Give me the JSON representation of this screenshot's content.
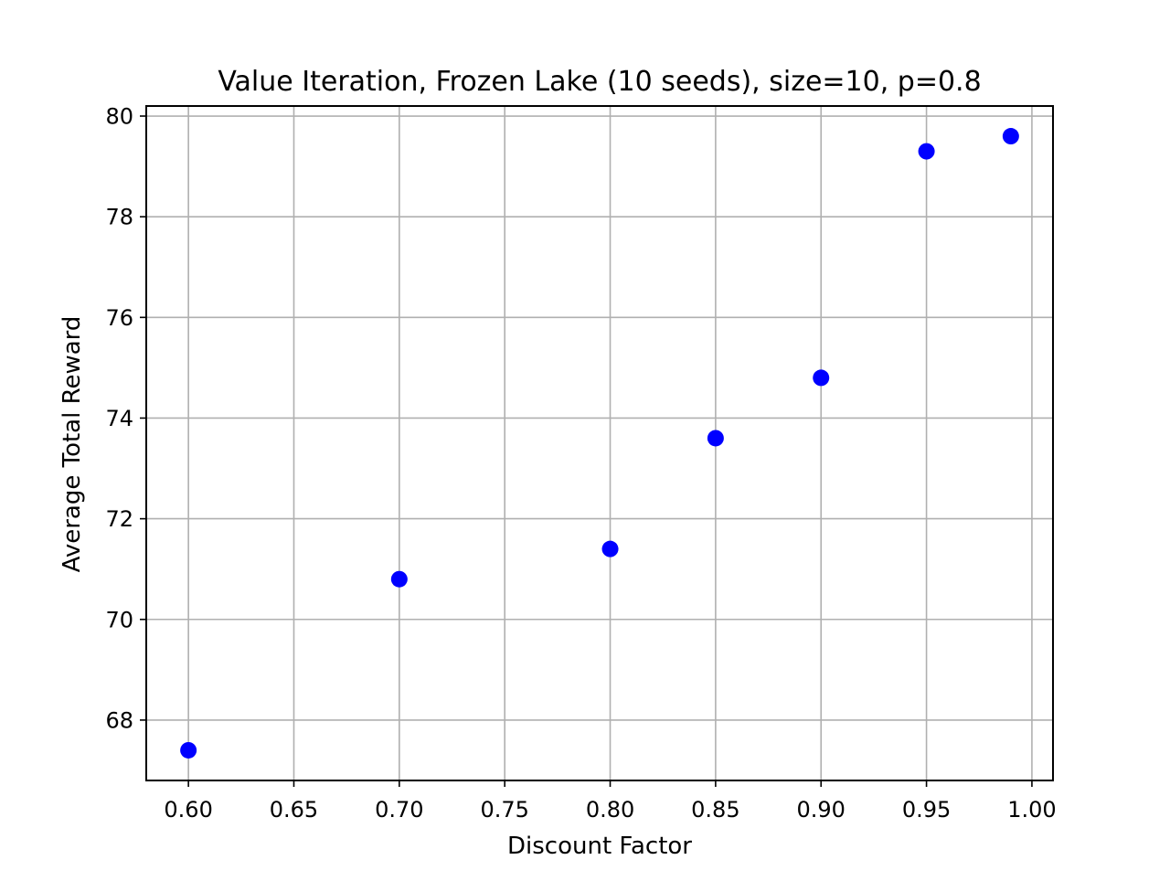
{
  "chart_data": {
    "type": "scatter",
    "title": "Value Iteration, Frozen Lake (10 seeds), size=10, p=0.8",
    "xlabel": "Discount Factor",
    "ylabel": "Average Total Reward",
    "xlim": [
      0.58,
      1.01
    ],
    "ylim": [
      66.8,
      80.2
    ],
    "xticks": [
      0.6,
      0.65,
      0.7,
      0.75,
      0.8,
      0.85,
      0.9,
      0.95,
      1.0
    ],
    "xtick_labels": [
      "0.60",
      "0.65",
      "0.70",
      "0.75",
      "0.80",
      "0.85",
      "0.90",
      "0.95",
      "1.00"
    ],
    "yticks": [
      68,
      70,
      72,
      74,
      76,
      78,
      80
    ],
    "ytick_labels": [
      "68",
      "70",
      "72",
      "74",
      "76",
      "78",
      "80"
    ],
    "grid": true,
    "legend": "none",
    "marker_color": "#0000ff",
    "series": [
      {
        "x": [
          0.6,
          0.7,
          0.8,
          0.85,
          0.9,
          0.95,
          0.99
        ],
        "y": [
          67.4,
          70.8,
          71.4,
          73.6,
          74.8,
          79.3,
          79.6
        ]
      }
    ]
  }
}
